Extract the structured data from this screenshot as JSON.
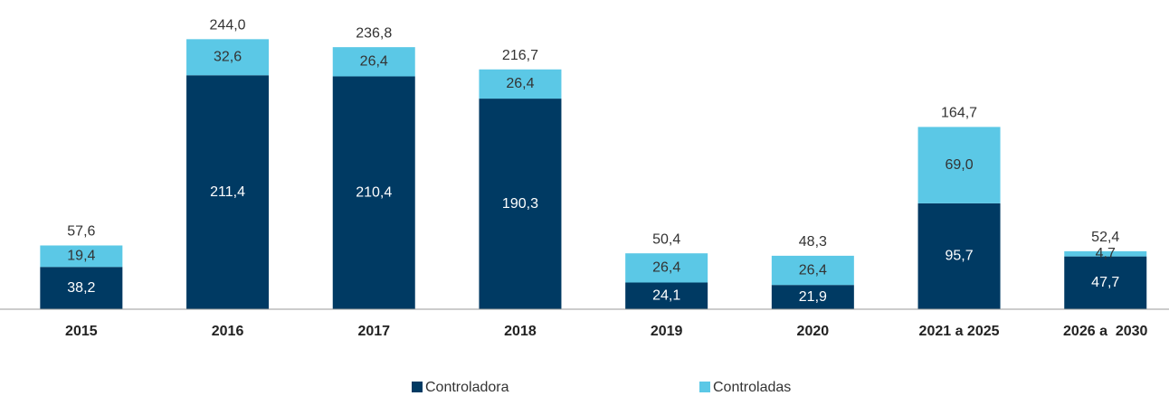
{
  "chart_data": {
    "type": "stacked_bar",
    "categories": [
      "2015",
      "2016",
      "2017",
      "2018",
      "2019",
      "2020",
      "2021 a 2025",
      "2026 a  2030"
    ],
    "series": [
      {
        "name": "Controladora",
        "color": "#003a63",
        "values": [
          38.2,
          211.4,
          210.4,
          190.3,
          24.1,
          21.9,
          95.7,
          47.7
        ],
        "value_labels": [
          "38,2",
          "211,4",
          "210,4",
          "190,3",
          "24,1",
          "21,9",
          "95,7",
          "47,7"
        ]
      },
      {
        "name": "Controladas",
        "color": "#5bc8e6",
        "values": [
          19.4,
          32.6,
          26.4,
          26.4,
          26.4,
          26.4,
          69.0,
          4.7
        ],
        "value_labels": [
          "19,4",
          "32,6",
          "26,4",
          "26,4",
          "26,4",
          "26,4",
          "69,0",
          "4,7"
        ]
      }
    ],
    "totals": [
      57.6,
      244.0,
      236.8,
      216.7,
      50.4,
      48.3,
      164.7,
      52.4
    ],
    "total_labels": [
      "57,6",
      "244,0",
      "236,8",
      "216,7",
      "50,4",
      "48,3",
      "164,7",
      "52,4"
    ],
    "ylim": [
      0,
      250
    ]
  }
}
